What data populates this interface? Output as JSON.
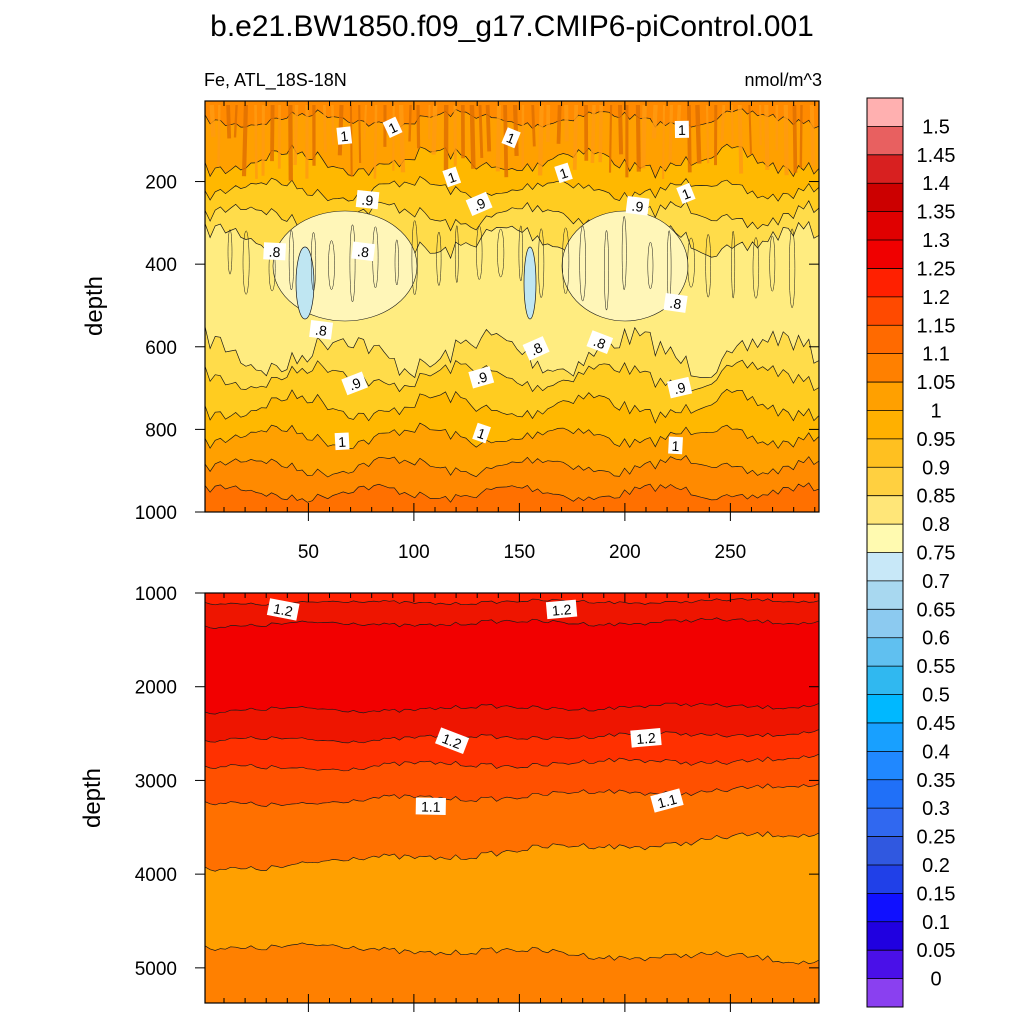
{
  "chart_data": [
    {
      "type": "contour",
      "title": "b.e21.BW1850.f09_g17.CMIP6-piControl.001",
      "left_string": "Fe, ATL_18S-18N",
      "right_string": "nmol/m^3",
      "xlabel": "",
      "ylabel": "depth",
      "xlim": [
        1,
        292
      ],
      "ylim": [
        1000,
        5
      ],
      "xticks": [
        50,
        100,
        150,
        200,
        250
      ],
      "yticks": [
        200,
        400,
        600,
        800,
        1000
      ],
      "contour_labels": [
        {
          "text": "1",
          "x": 67,
          "y": 90
        },
        {
          "text": "1",
          "x": 90,
          "y": 70
        },
        {
          "text": "1",
          "x": 146,
          "y": 95
        },
        {
          "text": "1",
          "x": 227,
          "y": 75
        },
        {
          "text": "1",
          "x": 118,
          "y": 190
        },
        {
          "text": "1",
          "x": 171,
          "y": 180
        },
        {
          "text": "1",
          "x": 229,
          "y": 230
        },
        {
          "text": ".9",
          "x": 78,
          "y": 245
        },
        {
          "text": ".9",
          "x": 131,
          "y": 255
        },
        {
          "text": ".9",
          "x": 206,
          "y": 260
        },
        {
          "text": ".8",
          "x": 34,
          "y": 370
        },
        {
          "text": ".8",
          "x": 76,
          "y": 370
        },
        {
          "text": ".8",
          "x": 224,
          "y": 495
        },
        {
          "text": ".8",
          "x": 56,
          "y": 560
        },
        {
          "text": ".8",
          "x": 158,
          "y": 605
        },
        {
          "text": ".8",
          "x": 188,
          "y": 590
        },
        {
          "text": ".9",
          "x": 72,
          "y": 690
        },
        {
          "text": ".9",
          "x": 132,
          "y": 675
        },
        {
          "text": ".9",
          "x": 226,
          "y": 700
        },
        {
          "text": "1",
          "x": 66,
          "y": 830
        },
        {
          "text": "1",
          "x": 132,
          "y": 810
        },
        {
          "text": "1",
          "x": 224,
          "y": 840
        }
      ]
    },
    {
      "type": "contour",
      "xlabel": "",
      "ylabel": "depth",
      "xlim": [
        1,
        292
      ],
      "ylim": [
        5375,
        1000
      ],
      "yticks": [
        1000,
        2000,
        3000,
        4000,
        5000
      ],
      "contour_labels": [
        {
          "text": "1.2",
          "x": 38,
          "y": 1180
        },
        {
          "text": "1.2",
          "x": 170,
          "y": 1180
        },
        {
          "text": "1.2",
          "x": 118,
          "y": 2580
        },
        {
          "text": "1.2",
          "x": 210,
          "y": 2550
        },
        {
          "text": "1.1",
          "x": 108,
          "y": 3280
        },
        {
          "text": "1.1",
          "x": 220,
          "y": 3220
        }
      ]
    }
  ],
  "colorbar": {
    "labels": [
      "1.5",
      "1.45",
      "1.4",
      "1.35",
      "1.3",
      "1.25",
      "1.2",
      "1.15",
      "1.1",
      "1.05",
      "1",
      "0.95",
      "0.9",
      "0.85",
      "0.8",
      "0.75",
      "0.7",
      "0.65",
      "0.6",
      "0.55",
      "0.5",
      "0.45",
      "0.4",
      "0.35",
      "0.3",
      "0.25",
      "0.2",
      "0.15",
      "0.1",
      "0.05",
      "0"
    ],
    "colors": [
      "#ffb0b0",
      "#e86060",
      "#d82020",
      "#cc0000",
      "#e00000",
      "#f00000",
      "#ff2000",
      "#ff4a00",
      "#ff6a00",
      "#ff8000",
      "#ffa000",
      "#ffb000",
      "#ffc020",
      "#ffd040",
      "#ffe678",
      "#fffab0",
      "#c8e8f8",
      "#a8d8f0",
      "#8ccaf0",
      "#60c0f0",
      "#30b8f0",
      "#00b8ff",
      "#18a0ff",
      "#2088ff",
      "#2070f8",
      "#3068f0",
      "#3058e0",
      "#2040e8",
      "#1010ff",
      "#2000e0",
      "#4a10e8",
      "#8a40f0"
    ]
  },
  "plots": [
    {
      "name": "upper",
      "levels": [
        1.1,
        1.05,
        1.0,
        0.95,
        0.9,
        0.85,
        0.8
      ],
      "level_colors": [
        "#ff7000",
        "#ff8a00",
        "#ffa000",
        "#ffb800",
        "#ffcc20",
        "#ffdc4a",
        "#ffec80"
      ]
    },
    {
      "name": "lower",
      "levels": [
        1.2,
        1.25,
        1.3,
        1.25,
        1.2,
        1.15,
        1.1,
        1.05,
        1.1
      ],
      "level_colors": [
        "#ff2000",
        "#ee1500",
        "#f20000",
        "#ee1500",
        "#ff3000",
        "#ff5000",
        "#ff7000",
        "#ffa000",
        "#ff8000"
      ]
    }
  ]
}
